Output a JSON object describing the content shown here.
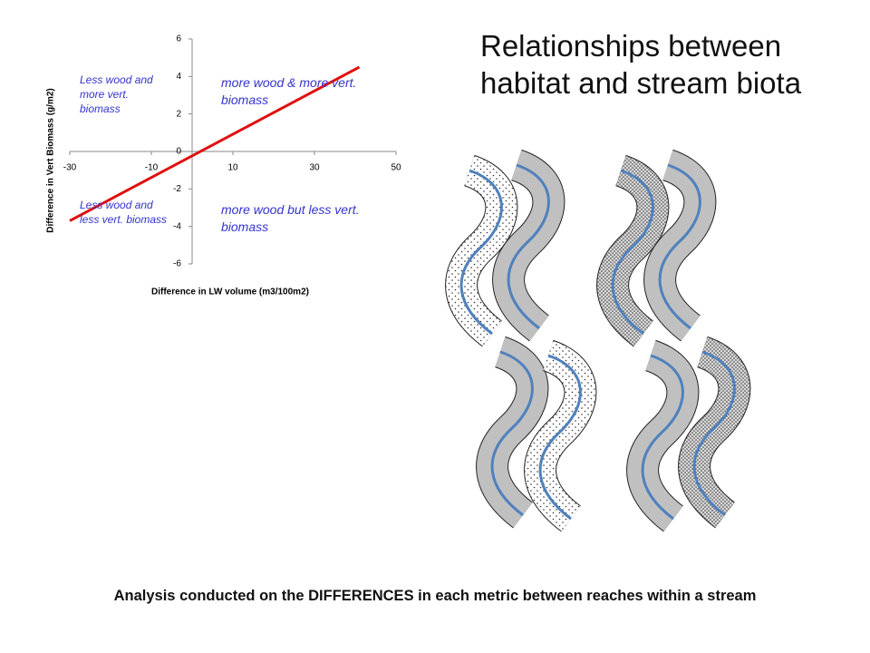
{
  "slide_title": "Relationships between habitat and stream biota",
  "footer": "Analysis conducted on the DIFFERENCES in each metric between reaches within a stream",
  "chart_data": {
    "type": "line",
    "x_label": "Difference in LW volume (m3/100m2)",
    "y_label": "Difference in Vert Biomass (g/m2)",
    "x": [
      -30,
      41
    ],
    "series": [
      {
        "color": "#e01010",
        "values": [
          -3.7,
          4.5
        ]
      }
    ],
    "xlim": [
      -30,
      50
    ],
    "xticks": [
      -30,
      -10,
      10,
      30,
      50
    ],
    "ylim": [
      -6,
      6
    ],
    "yticks": [
      -6,
      -4,
      -2,
      0,
      2,
      4,
      6
    ],
    "grid": false,
    "annotations": [
      "Less wood and more vert. biomass",
      "more wood & more vert. biomass",
      "Less wood and less vert. biomass",
      "more wood but less vert. biomass"
    ]
  }
}
